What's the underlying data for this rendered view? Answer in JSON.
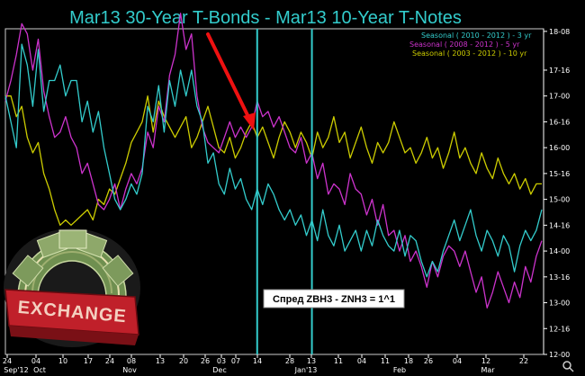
{
  "chart_data": {
    "type": "line",
    "title": "Mar13 30-Year T-Bonds - Mar13 10-Year T-Notes",
    "y_tick_labels": [
      "18-08",
      "17-16",
      "17-00",
      "16-16",
      "16-00",
      "15-16",
      "15-00",
      "14-16",
      "14-00",
      "13-16",
      "13-00",
      "12-16",
      "12-00"
    ],
    "x_tick_labels": [
      "24",
      "04",
      "10",
      "17",
      "24",
      "08",
      "13",
      "20",
      "26",
      "03",
      "07",
      "14",
      "28",
      "13",
      "11",
      "04",
      "11",
      "18",
      "26",
      "04",
      "12",
      "22"
    ],
    "x_month_labels": [
      "Sep'12",
      "Oct",
      "Nov",
      "Dec",
      "Jan'13",
      "Feb",
      "Mar"
    ],
    "ylim": [
      12.0,
      18.3
    ],
    "series": [
      {
        "name": "Seasonal ( 2010 - 2012 ) - 3 yr",
        "color": "#33cccc",
        "values": [
          17.0,
          16.5,
          16.0,
          18.0,
          17.6,
          16.8,
          17.9,
          16.7,
          17.3,
          17.3,
          17.6,
          17.0,
          17.3,
          17.3,
          16.5,
          16.9,
          16.3,
          16.7,
          16.0,
          15.5,
          15.0,
          14.8,
          15.0,
          15.3,
          15.1,
          15.5,
          16.8,
          16.5,
          17.2,
          16.3,
          17.3,
          16.8,
          17.5,
          17.0,
          17.5,
          16.8,
          16.5,
          15.7,
          15.9,
          15.3,
          15.1,
          15.6,
          15.2,
          15.4,
          15.0,
          14.8,
          15.2,
          14.9,
          15.3,
          15.1,
          14.8,
          14.6,
          14.8,
          14.5,
          14.7,
          14.3,
          14.6,
          14.2,
          14.8,
          14.3,
          14.1,
          14.5,
          14.0,
          14.2,
          14.4,
          14.0,
          14.4,
          14.1,
          14.6,
          14.3,
          14.1,
          14.0,
          14.4,
          13.9,
          14.3,
          14.2,
          13.8,
          13.5,
          13.8,
          13.6,
          14.0,
          14.3,
          14.6,
          14.2,
          14.5,
          14.8,
          14.3,
          14.0,
          14.4,
          14.2,
          13.9,
          14.3,
          14.1,
          13.6,
          14.1,
          14.4,
          14.2,
          14.4,
          14.8
        ]
      },
      {
        "name": "Seasonal ( 2008 - 2012 ) - 5 yr",
        "color": "#cc33cc",
        "values": [
          16.9,
          17.3,
          17.8,
          18.4,
          18.2,
          17.5,
          18.1,
          17.1,
          16.6,
          16.2,
          16.3,
          16.6,
          16.2,
          16.0,
          15.5,
          15.7,
          15.3,
          14.9,
          14.8,
          15.0,
          15.3,
          14.8,
          15.2,
          15.5,
          15.3,
          15.6,
          16.3,
          16.0,
          16.8,
          16.5,
          17.4,
          17.8,
          18.6,
          17.9,
          18.2,
          17.0,
          16.4,
          16.1,
          16.0,
          15.9,
          16.2,
          16.5,
          16.2,
          16.4,
          16.2,
          16.4,
          16.9,
          16.6,
          16.7,
          16.4,
          16.6,
          16.3,
          16.0,
          15.9,
          16.2,
          15.7,
          15.9,
          15.4,
          15.7,
          15.1,
          15.3,
          15.2,
          14.9,
          15.5,
          15.2,
          15.1,
          14.7,
          15.0,
          14.5,
          14.9,
          14.3,
          14.4,
          14.0,
          14.3,
          13.8,
          14.0,
          13.7,
          13.3,
          13.8,
          13.5,
          13.9,
          14.1,
          14.0,
          13.7,
          14.0,
          13.6,
          13.2,
          13.5,
          12.9,
          13.2,
          13.6,
          13.3,
          13.0,
          13.4,
          13.1,
          13.7,
          13.4,
          13.9,
          14.2
        ]
      },
      {
        "name": "Seasonal ( 2003 - 2012 ) - 10 yr",
        "color": "#cccc00",
        "values": [
          17.0,
          17.0,
          16.6,
          16.8,
          16.2,
          15.9,
          16.1,
          15.5,
          15.2,
          14.8,
          14.5,
          14.6,
          14.5,
          14.6,
          14.7,
          14.8,
          14.6,
          15.0,
          14.9,
          15.2,
          15.1,
          15.4,
          15.7,
          16.1,
          16.3,
          16.5,
          17.0,
          16.3,
          16.9,
          16.6,
          16.4,
          16.2,
          16.4,
          16.6,
          16.0,
          16.2,
          16.5,
          16.8,
          16.4,
          16.0,
          15.9,
          16.2,
          15.8,
          16.0,
          16.3,
          16.5,
          16.2,
          16.4,
          16.1,
          15.8,
          16.2,
          16.5,
          16.3,
          16.0,
          16.3,
          16.1,
          15.8,
          16.3,
          16.0,
          16.2,
          16.6,
          16.1,
          16.3,
          15.8,
          16.1,
          16.4,
          16.0,
          15.7,
          16.1,
          15.9,
          16.1,
          16.5,
          16.2,
          15.9,
          16.0,
          15.7,
          15.9,
          16.2,
          15.8,
          16.0,
          15.6,
          15.9,
          16.3,
          15.8,
          16.0,
          15.7,
          15.5,
          15.9,
          15.6,
          15.4,
          15.8,
          15.5,
          15.3,
          15.5,
          15.2,
          15.4,
          15.1,
          15.3,
          15.3
        ]
      }
    ],
    "vertical_markers_x": [
      46,
      56
    ],
    "arrow": "red arrow pointing down-right toward Dec 14",
    "annotation": "Спред ZBH3 - ZNH3 = 1^1",
    "image_labels": [
      "EXCHANGE"
    ],
    "legend_position": "top-right",
    "grid": false
  },
  "colors": {
    "background": "#000000",
    "title": "#33cccc",
    "axis": "#ffffff",
    "arrow": "#ee1111",
    "annotation_bg": "#ffffff"
  },
  "icons": [
    "money-exchange-emblem",
    "search-icon"
  ]
}
